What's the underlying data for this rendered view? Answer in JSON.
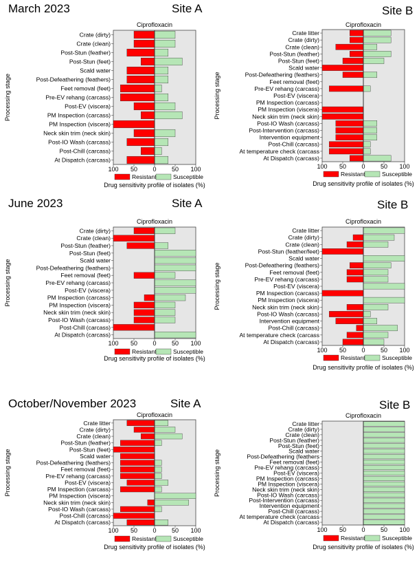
{
  "periods": [
    {
      "label": "March 2023",
      "sites": [
        "Site A",
        "Site B"
      ]
    },
    {
      "label": "June 2023",
      "sites": [
        "Site A",
        "Site B"
      ]
    },
    {
      "label": "October/November 2023",
      "sites": [
        "Site A",
        "Site B"
      ]
    }
  ],
  "colors": {
    "resistant": "#ff0000",
    "susceptible": "#b6e6b6",
    "plot_bg": "#e6e6e6"
  },
  "chart_data": [
    {
      "type": "bar",
      "orientation": "diverging-horizontal",
      "period": "March 2023",
      "site": "Site A",
      "title": "Ciprofloxacin",
      "ylabel": "Processing stage",
      "xlabel": "Drug sensitivity profile of isolates (%)",
      "xticks": [
        100,
        50,
        0,
        50,
        100
      ],
      "legend": [
        "Resistant",
        "Susceptible"
      ],
      "categories": [
        "Crate (dirty)",
        "Crate (clean)",
        "Post-Stun (feather)",
        "Post-Stun (feet)",
        "Scald water",
        "Post-Defeathering (feathers)",
        "Feet removal (feet)",
        "Pre-EV rehang (carcass)",
        "Post-EV (viscera)",
        "PM Inspection (carcass)",
        "PM Inspection (viscera)",
        "Neck skin trim (neck skin)",
        "Post-IO Wash (carcass)",
        "Post-Chill (carcass)",
        "At Dispatch (carcass)"
      ],
      "series": [
        {
          "name": "Resistant",
          "values": [
            50,
            50,
            67,
            33,
            67,
            67,
            83,
            83,
            50,
            33,
            100,
            50,
            67,
            33,
            67
          ]
        },
        {
          "name": "Susceptible",
          "values": [
            50,
            50,
            33,
            67,
            33,
            33,
            17,
            33,
            50,
            67,
            0,
            50,
            33,
            17,
            33
          ]
        }
      ]
    },
    {
      "type": "bar",
      "orientation": "diverging-horizontal",
      "period": "March 2023",
      "site": "Site B",
      "title": "Ciprofloxacin",
      "ylabel": "Processing stage",
      "xlabel": "Drug sensitivity profile of isolates (%)",
      "xticks": [
        100,
        50,
        0,
        50,
        100
      ],
      "legend": [
        "Resistant",
        "Susceptible"
      ],
      "categories": [
        "Crate litter",
        "Crate (dirty)",
        "Crate (clean)",
        "Post-Stun (feather)",
        "Post-Stun (feet)",
        "Scald water",
        "Post-Defeathering (feathers)",
        "Feet removal (feet)",
        "Pre-EV rehang (carcass)",
        "Post-EV (viscera)",
        "PM Inspection (carcass)",
        "PM Inspection (viscera)",
        "Neck skin trim (neck skin)",
        "Post-IO Wash (carcass)",
        "Post-Intervention (carcass)",
        "Intervention equipment",
        "Post-Chill (carcass)",
        "At temperature check (carcass",
        "At Dispatch (carcass)"
      ],
      "series": [
        {
          "name": "Resistant",
          "values": [
            33,
            33,
            67,
            33,
            50,
            100,
            50,
            0,
            83,
            0,
            0,
            100,
            100,
            67,
            67,
            67,
            83,
            83,
            33
          ]
        },
        {
          "name": "Susceptible",
          "values": [
            67,
            67,
            33,
            67,
            50,
            0,
            33,
            0,
            17,
            0,
            0,
            0,
            0,
            33,
            33,
            33,
            17,
            17,
            67
          ]
        }
      ]
    },
    {
      "type": "bar",
      "orientation": "diverging-horizontal",
      "period": "June 2023",
      "site": "Site A",
      "title": "Ciprofloxacin",
      "ylabel": "Processing stage",
      "xlabel": "Drug sensitivity profile of isolates (%)",
      "xticks": [
        100,
        50,
        0,
        50,
        100
      ],
      "legend": [
        "Resistant",
        "Susceptible"
      ],
      "categories": [
        "Crate (dirty)",
        "Crate (clean)",
        "Post-Stun (feather)",
        "Post-Stun (feet)",
        "Scald water",
        "Post-Defeathering (feathers)",
        "Feet removal (feet)",
        "Pre-EV rehang (carcass)",
        "Post-EV (viscera)",
        "PM Inspection (carcass)",
        "PM Inspection (viscera)",
        "Neck skin trim (neck skin)",
        "Post-IO Wash (carcass)",
        "Post-Chill (carcass)",
        "At Dispatch (carcass)"
      ],
      "series": [
        {
          "name": "Resistant",
          "values": [
            50,
            100,
            67,
            0,
            0,
            0,
            50,
            0,
            0,
            25,
            50,
            50,
            50,
            100,
            0
          ]
        },
        {
          "name": "Susceptible",
          "values": [
            50,
            0,
            33,
            100,
            100,
            100,
            50,
            100,
            100,
            75,
            50,
            50,
            50,
            0,
            100
          ]
        }
      ]
    },
    {
      "type": "bar",
      "orientation": "diverging-horizontal",
      "period": "June 2023",
      "site": "Site B",
      "title": "Ciprofloxacin",
      "ylabel": "Processing stage",
      "xlabel": "Drug sensitivity profile of isolates (%)",
      "xticks": [
        100,
        50,
        0,
        50,
        100
      ],
      "legend": [
        "Resistant",
        "Susceptible"
      ],
      "categories": [
        "Crate litter",
        "Crate (dirty)",
        "Crate (clean)",
        "Post-Stun (feather/feet)",
        "Scald water",
        "Post-Defeathering (feathers)",
        "Feet removal (feet)",
        "Pre-EV rehang (carcass)",
        "Post-EV (viscera)",
        "PM Inspection (carcass)",
        "PM Inspection (viscera)",
        "Neck skin trim (neck skin)",
        "Post-IO Wash (carcass)",
        "Intervention equipment",
        "Post-Chill (carcass)",
        "At temperature check (carcass",
        "At Dispatch (carcass)"
      ],
      "series": [
        {
          "name": "Resistant",
          "values": [
            0,
            25,
            40,
            100,
            0,
            33,
            40,
            40,
            0,
            100,
            0,
            40,
            83,
            67,
            17,
            40,
            50
          ]
        },
        {
          "name": "Susceptible",
          "values": [
            100,
            75,
            60,
            0,
            100,
            67,
            60,
            60,
            100,
            0,
            100,
            60,
            17,
            33,
            83,
            60,
            50
          ]
        }
      ]
    },
    {
      "type": "bar",
      "orientation": "diverging-horizontal",
      "period": "October/November 2023",
      "site": "Site A",
      "title": "Ciprofloxacin",
      "ylabel": "Processing stage",
      "xlabel": "Drug sensitivity profile of isolates (%)",
      "xticks": [
        100,
        50,
        0,
        50,
        100
      ],
      "legend": [
        "Resistant",
        "Susceptible"
      ],
      "categories": [
        "Crate litter",
        "Crate (dirty)",
        "Crate (clean)",
        "Post-Stun (feather)",
        "Post-Stun (feet)",
        "Scald water",
        "Post-Defeathering (feathers)",
        "Feet removal (feet)",
        "Pre-EV rehang (carcass)",
        "Post-EV (viscera)",
        "PM Inspection (carcass)",
        "PM Inspection (viscera)",
        "Neck skin trim (neck skin)",
        "Post-IO Wash (carcass)",
        "Post-Chill (carcass)",
        "At Dispatch (carcass)"
      ],
      "series": [
        {
          "name": "Resistant",
          "values": [
            67,
            50,
            33,
            83,
            100,
            83,
            83,
            83,
            83,
            67,
            83,
            0,
            17,
            83,
            100,
            67
          ]
        },
        {
          "name": "Susceptible",
          "values": [
            33,
            50,
            67,
            17,
            0,
            0,
            17,
            17,
            17,
            33,
            17,
            100,
            83,
            17,
            0,
            33
          ]
        }
      ]
    },
    {
      "type": "bar",
      "orientation": "diverging-horizontal",
      "period": "October/November 2023",
      "site": "Site B",
      "title": "Ciprofloxacin",
      "ylabel": "Processing stage",
      "xlabel": "Drug sensitivity profile of isolates (%)",
      "xticks": [
        100,
        50,
        0,
        50,
        100
      ],
      "legend": [
        "Resistant",
        "Susceptible"
      ],
      "categories": [
        "Crate litter",
        "Crate (dirty)",
        "Crate (clean)",
        "Post-Stun (feather)",
        "Post-Stun (feet)",
        "Scald water",
        "Post-Defeathering (feathers",
        "Feet removal (feet)",
        "Pre-EV rehang (carcass)",
        "Post-EV (viscera)",
        "PM Inspection (carcass)",
        "PM Inspection (viscera)",
        "Neck skin trim (neck skin)",
        "Post-IO Wash (carcass)",
        "Post-Intervention (carcass)",
        "Intervention equipment",
        "Post-Chill (carcass)",
        "At temperature check (carcass",
        "At Dispatch (carcass)"
      ],
      "series": [
        {
          "name": "Resistant",
          "values": [
            0,
            0,
            0,
            0,
            0,
            0,
            0,
            0,
            0,
            0,
            0,
            0,
            0,
            0,
            0,
            0,
            0,
            0,
            0
          ]
        },
        {
          "name": "Susceptible",
          "values": [
            100,
            100,
            100,
            100,
            100,
            100,
            100,
            100,
            100,
            100,
            100,
            100,
            100,
            100,
            100,
            100,
            100,
            100,
            100
          ]
        }
      ]
    }
  ]
}
